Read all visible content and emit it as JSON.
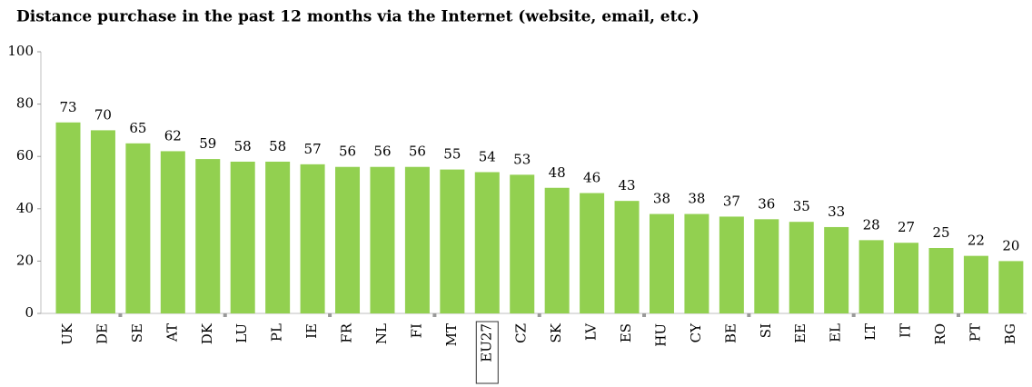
{
  "chart_data": {
    "type": "bar",
    "title": "Distance purchase in the past 12 months via the Internet (website, email, etc.)",
    "categories": [
      "UK",
      "DE",
      "SE",
      "AT",
      "DK",
      "LU",
      "PL",
      "IE",
      "FR",
      "NL",
      "FI",
      "MT",
      "EU27",
      "CZ",
      "SK",
      "LV",
      "ES",
      "HU",
      "CY",
      "BE",
      "SI",
      "EE",
      "EL",
      "LT",
      "IT",
      "RO",
      "PT",
      "BG"
    ],
    "values": [
      73,
      70,
      65,
      62,
      59,
      58,
      58,
      57,
      56,
      56,
      56,
      55,
      54,
      53,
      48,
      46,
      43,
      38,
      38,
      37,
      36,
      35,
      33,
      28,
      27,
      25,
      22,
      20
    ],
    "color": "#92d050",
    "ylim": [
      0,
      100
    ],
    "yticks": [
      0,
      20,
      40,
      60,
      80,
      100
    ],
    "grid": false,
    "highlight": 12
  }
}
